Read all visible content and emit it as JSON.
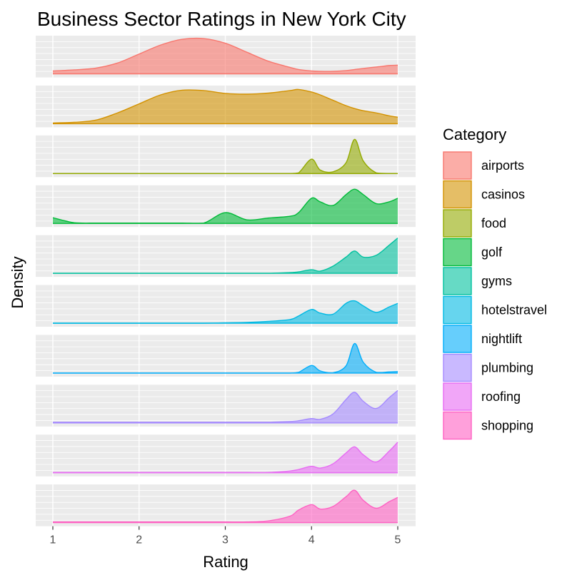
{
  "chart_data": {
    "type": "area",
    "title": "Business Sector Ratings in New York City",
    "xlabel": "Rating",
    "ylabel": "Density",
    "xlim": [
      1,
      5
    ],
    "x_ticks": [
      "1",
      "2",
      "3",
      "4",
      "5"
    ],
    "grid": true,
    "legend": {
      "title": "Category",
      "placement": "right"
    },
    "x": [
      1,
      1.25,
      1.5,
      1.75,
      2,
      2.25,
      2.5,
      2.75,
      3,
      3.25,
      3.5,
      3.75,
      3.85,
      4,
      4.1,
      4.25,
      4.4,
      4.5,
      4.6,
      4.75,
      4.9,
      5
    ],
    "series": [
      {
        "name": "airports",
        "color": "#F8766D",
        "values": [
          0.08,
          0.11,
          0.16,
          0.3,
          0.55,
          0.8,
          0.96,
          0.98,
          0.85,
          0.6,
          0.35,
          0.18,
          0.12,
          0.08,
          0.07,
          0.07,
          0.09,
          0.12,
          0.15,
          0.19,
          0.23,
          0.24
        ]
      },
      {
        "name": "casinos",
        "color": "#D39200",
        "values": [
          0.02,
          0.04,
          0.1,
          0.3,
          0.55,
          0.8,
          0.93,
          0.92,
          0.84,
          0.82,
          0.85,
          0.92,
          0.95,
          0.88,
          0.8,
          0.65,
          0.5,
          0.42,
          0.36,
          0.3,
          0.22,
          0.18
        ]
      },
      {
        "name": "food",
        "color": "#93AA00",
        "values": [
          0,
          0,
          0,
          0,
          0,
          0,
          0,
          0,
          0,
          0,
          0,
          0,
          0.02,
          0.4,
          0.1,
          0.05,
          0.3,
          0.95,
          0.35,
          0.02,
          0,
          0
        ]
      },
      {
        "name": "golf",
        "color": "#00BA38",
        "values": [
          0.16,
          0.02,
          0.01,
          0.01,
          0.01,
          0.01,
          0.01,
          0.01,
          0.3,
          0.1,
          0.15,
          0.2,
          0.3,
          0.7,
          0.6,
          0.5,
          0.8,
          0.95,
          0.8,
          0.55,
          0.6,
          0.7
        ]
      },
      {
        "name": "gyms",
        "color": "#00C19F",
        "values": [
          0,
          0,
          0,
          0,
          0,
          0,
          0,
          0,
          0,
          0,
          0,
          0.02,
          0.04,
          0.1,
          0.06,
          0.2,
          0.45,
          0.62,
          0.45,
          0.5,
          0.78,
          0.98
        ]
      },
      {
        "name": "hotelstravel",
        "color": "#00B9E3",
        "values": [
          0,
          0,
          0,
          0,
          0,
          0,
          0,
          0,
          0.01,
          0.02,
          0.05,
          0.1,
          0.2,
          0.38,
          0.28,
          0.25,
          0.55,
          0.62,
          0.48,
          0.3,
          0.45,
          0.55
        ]
      },
      {
        "name": "nightlift",
        "color": "#00ADFA",
        "values": [
          0,
          0,
          0,
          0,
          0,
          0,
          0,
          0,
          0,
          0,
          0,
          0,
          0.02,
          0.21,
          0.06,
          0.01,
          0.2,
          0.82,
          0.3,
          0.02,
          0.03,
          0.04
        ]
      },
      {
        "name": "plumbing",
        "color": "#A58AFF",
        "values": [
          0.02,
          0.02,
          0.02,
          0.02,
          0.02,
          0.02,
          0.02,
          0.02,
          0.02,
          0.02,
          0.02,
          0.04,
          0.06,
          0.12,
          0.1,
          0.25,
          0.65,
          0.85,
          0.6,
          0.4,
          0.7,
          0.9
        ]
      },
      {
        "name": "roofing",
        "color": "#E76BF3",
        "values": [
          0.01,
          0.01,
          0.01,
          0.01,
          0.01,
          0.01,
          0.01,
          0.01,
          0.01,
          0.01,
          0.01,
          0.05,
          0.09,
          0.18,
          0.13,
          0.25,
          0.55,
          0.72,
          0.5,
          0.3,
          0.6,
          0.85
        ]
      },
      {
        "name": "shopping",
        "color": "#FF61C3",
        "values": [
          0.02,
          0.02,
          0.02,
          0.02,
          0.02,
          0.02,
          0.02,
          0.02,
          0.02,
          0.02,
          0.05,
          0.18,
          0.35,
          0.5,
          0.38,
          0.45,
          0.72,
          0.9,
          0.62,
          0.4,
          0.58,
          0.7
        ]
      }
    ]
  }
}
